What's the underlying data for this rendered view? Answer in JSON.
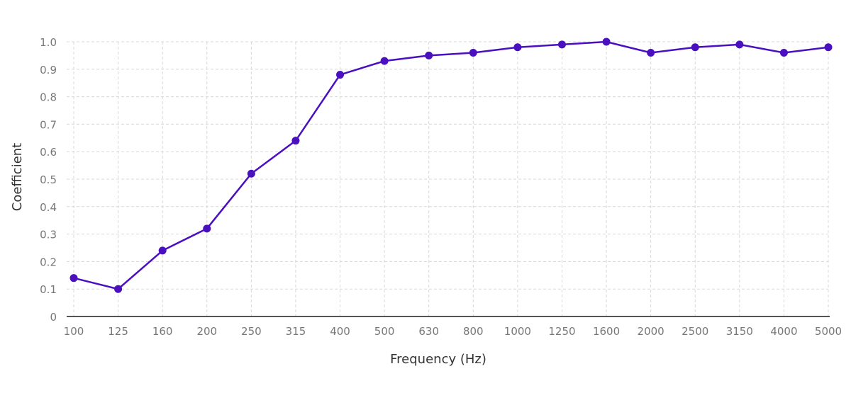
{
  "chart_data": {
    "type": "line",
    "title": "",
    "xlabel": "Frequency (Hz)",
    "ylabel": "Coefficient",
    "categories": [
      "100",
      "125",
      "160",
      "200",
      "250",
      "315",
      "400",
      "500",
      "630",
      "800",
      "1000",
      "1250",
      "1600",
      "2000",
      "2500",
      "3150",
      "4000",
      "5000"
    ],
    "series": [
      {
        "name": "Coefficient",
        "color": "#4a0fbf",
        "values": [
          0.14,
          0.1,
          0.24,
          0.32,
          0.52,
          0.64,
          0.88,
          0.93,
          0.95,
          0.96,
          0.98,
          0.99,
          1.0,
          0.96,
          0.98,
          0.99,
          0.96,
          0.98
        ]
      }
    ],
    "ylim": [
      0,
      1.0
    ],
    "yticks": [
      "0",
      "0.1",
      "0.2",
      "0.3",
      "0.4",
      "0.5",
      "0.6",
      "0.7",
      "0.8",
      "0.9",
      "1.0"
    ],
    "grid": true,
    "legend": "none"
  }
}
